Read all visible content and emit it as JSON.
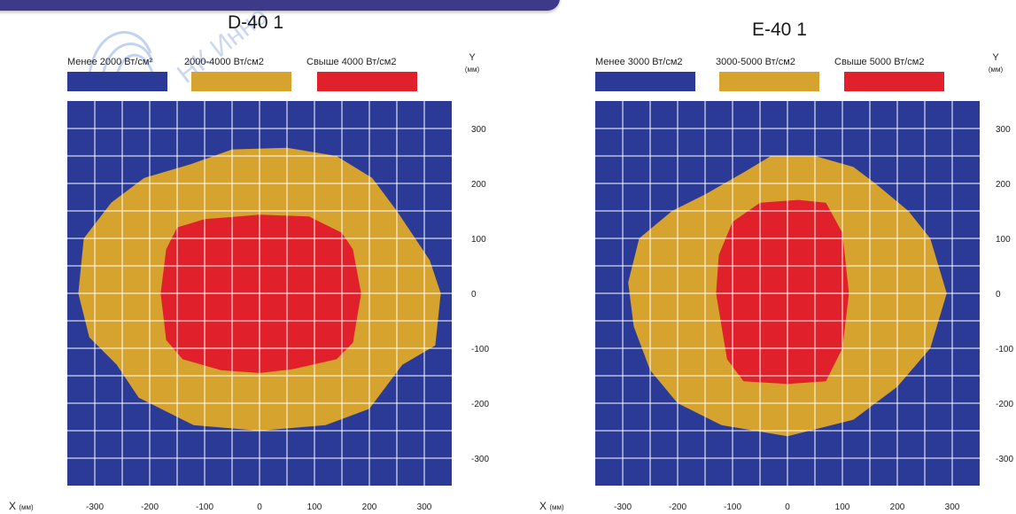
{
  "panels": [
    {
      "title": "D-40 1",
      "legend": [
        {
          "label": "Менее 2000  Вт/см²",
          "color": "#2a3a96"
        },
        {
          "label": "2000-4000  Вт/см2",
          "color": "#d6a32e"
        },
        {
          "label": "Свыше 4000  Вт/см2",
          "color": "#e0202a"
        }
      ],
      "y_axis_label": "Y",
      "y_axis_unit": "(мм)",
      "x_axis_label": "X",
      "x_axis_unit": "(мм)"
    },
    {
      "title": "E-40 1",
      "legend": [
        {
          "label": "Менее 3000  Вт/см2",
          "color": "#2a3a96"
        },
        {
          "label": "3000-5000  Вт/см2",
          "color": "#d6a32e"
        },
        {
          "label": "Свыше 5000  Вт/см2",
          "color": "#e0202a"
        }
      ],
      "y_axis_label": "Y",
      "y_axis_unit": "(мм)",
      "x_axis_label": "X",
      "x_axis_unit": "(мм)"
    }
  ],
  "chart_data": [
    {
      "type": "heatmap",
      "title": "D-40 1",
      "xlim": [
        -350,
        350
      ],
      "ylim": [
        -350,
        350
      ],
      "x_ticks": [
        -300,
        -200,
        -100,
        0,
        100,
        200,
        300
      ],
      "y_ticks": [
        300,
        200,
        100,
        0,
        -100,
        -200,
        -300
      ],
      "grid": true,
      "background_color": "#2a3a96",
      "zones": [
        {
          "name": "2000-4000  Вт/см2",
          "color": "#d6a32e",
          "outline": [
            [
              -125,
              235
            ],
            [
              -50,
              262
            ],
            [
              50,
              265
            ],
            [
              140,
              250
            ],
            [
              205,
              210
            ],
            [
              250,
              150
            ],
            [
              310,
              60
            ],
            [
              330,
              0
            ],
            [
              320,
              -95
            ],
            [
              260,
              -130
            ],
            [
              200,
              -210
            ],
            [
              120,
              -240
            ],
            [
              0,
              -250
            ],
            [
              -120,
              -240
            ],
            [
              -220,
              -190
            ],
            [
              -260,
              -130
            ],
            [
              -310,
              -80
            ],
            [
              -330,
              0
            ],
            [
              -320,
              100
            ],
            [
              -270,
              165
            ],
            [
              -210,
              210
            ]
          ]
        },
        {
          "name": "Свыше 4000  Вт/см2",
          "color": "#e0202a",
          "outline": [
            [
              -150,
              120
            ],
            [
              -100,
              135
            ],
            [
              0,
              143
            ],
            [
              90,
              140
            ],
            [
              150,
              110
            ],
            [
              170,
              80
            ],
            [
              185,
              0
            ],
            [
              170,
              -90
            ],
            [
              140,
              -120
            ],
            [
              60,
              -138
            ],
            [
              0,
              -145
            ],
            [
              -70,
              -140
            ],
            [
              -140,
              -120
            ],
            [
              -170,
              -85
            ],
            [
              -180,
              0
            ],
            [
              -170,
              80
            ]
          ]
        }
      ]
    },
    {
      "type": "heatmap",
      "title": "E-40 1",
      "xlim": [
        -350,
        350
      ],
      "ylim": [
        -350,
        350
      ],
      "x_ticks": [
        -300,
        -200,
        -100,
        0,
        100,
        200,
        300
      ],
      "y_ticks": [
        300,
        200,
        100,
        0,
        -100,
        -200,
        -300
      ],
      "grid": true,
      "background_color": "#2a3a96",
      "zones": [
        {
          "name": "3000-5000  Вт/см2",
          "color": "#d6a32e",
          "outline": [
            [
              -150,
              180
            ],
            [
              -80,
              220
            ],
            [
              -30,
              250
            ],
            [
              50,
              250
            ],
            [
              120,
              230
            ],
            [
              160,
              200
            ],
            [
              220,
              150
            ],
            [
              260,
              100
            ],
            [
              290,
              0
            ],
            [
              260,
              -100
            ],
            [
              200,
              -170
            ],
            [
              120,
              -230
            ],
            [
              0,
              -260
            ],
            [
              -120,
              -240
            ],
            [
              -200,
              -200
            ],
            [
              -250,
              -140
            ],
            [
              -280,
              -60
            ],
            [
              -290,
              20
            ],
            [
              -270,
              100
            ],
            [
              -210,
              150
            ]
          ]
        },
        {
          "name": "Свыше 5000  Вт/см2",
          "color": "#e0202a",
          "outline": [
            [
              -100,
              130
            ],
            [
              -50,
              165
            ],
            [
              20,
              170
            ],
            [
              70,
              165
            ],
            [
              100,
              110
            ],
            [
              112,
              0
            ],
            [
              100,
              -100
            ],
            [
              70,
              -160
            ],
            [
              0,
              -165
            ],
            [
              -80,
              -160
            ],
            [
              -110,
              -120
            ],
            [
              -130,
              0
            ],
            [
              -125,
              70
            ]
          ]
        }
      ]
    }
  ]
}
